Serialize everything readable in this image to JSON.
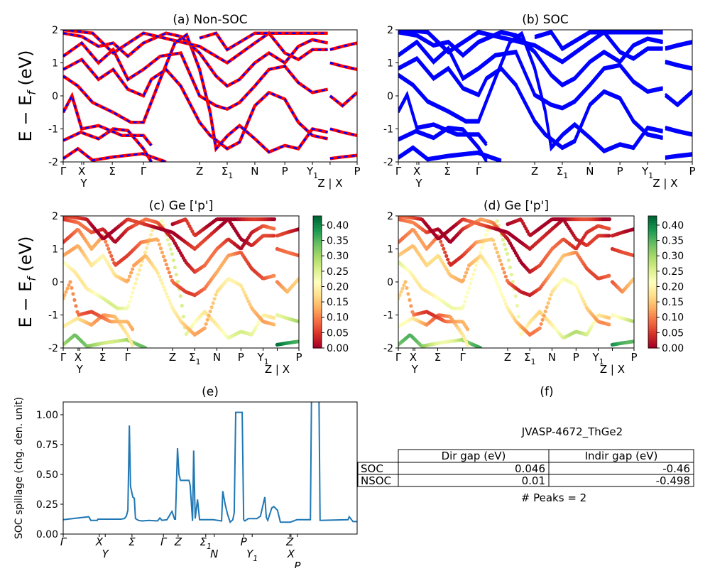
{
  "figure_ylabel": "E − E",
  "figure_ylabel_sub": "f",
  "figure_ylabel_unit": " (eV)",
  "chart_data": [
    {
      "id": "a",
      "type": "line",
      "title": "(a) Non-SOC",
      "ylim": [
        -2,
        2
      ],
      "yticks": [
        -2,
        -1,
        0,
        1,
        2
      ],
      "kpath_labels": [
        {
          "label": "Γ",
          "k": 0
        },
        {
          "label": "X",
          "k": 0.063
        },
        {
          "label": "Y",
          "k": 0.07
        },
        {
          "label": "Σ",
          "k": 0.167
        },
        {
          "label": "Γ",
          "k": 0.273
        },
        {
          "label": "Z",
          "k": 0.464
        },
        {
          "label": "Σ",
          "sub": "1",
          "k": 0.558
        },
        {
          "label": "N",
          "k": 0.652
        },
        {
          "label": "P",
          "k": 0.754
        },
        {
          "label": "Y",
          "sub": "1",
          "k": 0.848
        },
        {
          "label": "Z | X",
          "k": 0.908
        },
        {
          "label": "P",
          "k": 1
        }
      ],
      "colors": {
        "line": "#ff0000",
        "dash": "#0000ff"
      }
    },
    {
      "id": "b",
      "type": "line",
      "title": "(b) SOC",
      "ylim": [
        -2,
        2
      ],
      "yticks": [
        -2,
        -1,
        0,
        1,
        2
      ],
      "colors": {
        "line": "#0000ff"
      }
    },
    {
      "id": "c",
      "type": "scatter",
      "title": "(c)  Ge ['p']",
      "ylim": [
        -2,
        2
      ],
      "yticks": [
        -2,
        -1,
        0,
        1,
        2
      ],
      "colorbar": {
        "colormap": "RdYlGn",
        "range": [
          0,
          0.43
        ],
        "ticks": [
          "0.00",
          "0.05",
          "0.10",
          "0.15",
          "0.20",
          "0.25",
          "0.30",
          "0.35",
          "0.40"
        ]
      }
    },
    {
      "id": "d",
      "type": "scatter",
      "title": "(d) Ge ['p']",
      "ylim": [
        -2,
        2
      ],
      "yticks": [
        -2,
        -1,
        0,
        1,
        2
      ],
      "colorbar": {
        "colormap": "RdYlGn",
        "range": [
          0,
          0.43
        ],
        "ticks": [
          "0.00",
          "0.05",
          "0.10",
          "0.15",
          "0.20",
          "0.25",
          "0.30",
          "0.35",
          "0.40"
        ]
      }
    },
    {
      "id": "e",
      "type": "line",
      "title": "(e)",
      "ylabel": "SOC spillage (chg. den. unit)",
      "ylim": [
        0,
        1.107
      ],
      "yticks": [
        "0.00",
        "0.25",
        "0.50",
        "0.75",
        "1.00"
      ],
      "color": "#1f77b4",
      "kpath_labels": [
        {
          "label": "Γ",
          "k": 0
        },
        {
          "label": "X",
          "k": 0.123
        },
        {
          "label": "Y",
          "k": 0.143
        },
        {
          "label": "Σ",
          "k": 0.234
        },
        {
          "label": "Γ",
          "k": 0.341
        },
        {
          "label": "Z",
          "k": 0.391
        },
        {
          "label": "Σ",
          "sub": "1",
          "k": 0.485
        },
        {
          "label": "N",
          "k": 0.514
        },
        {
          "label": "P",
          "k": 0.614
        },
        {
          "label": "Y",
          "sub": "1",
          "k": 0.643
        },
        {
          "label": "Z",
          "k": 0.771
        },
        {
          "label": "X",
          "k": 0.775
        },
        {
          "label": "P",
          "k": 0.797
        }
      ],
      "points": [
        [
          0,
          0.12
        ],
        [
          0.087,
          0.145
        ],
        [
          0.094,
          0.115
        ],
        [
          0.116,
          0.115
        ],
        [
          0.118,
          0.125
        ],
        [
          0.196,
          0.125
        ],
        [
          0.208,
          0.13
        ],
        [
          0.215,
          0.15
        ],
        [
          0.22,
          0.2
        ],
        [
          0.225,
          0.91
        ],
        [
          0.229,
          0.4
        ],
        [
          0.237,
          0.31
        ],
        [
          0.242,
          0.3
        ],
        [
          0.246,
          0.13
        ],
        [
          0.256,
          0.115
        ],
        [
          0.268,
          0.11
        ],
        [
          0.292,
          0.115
        ],
        [
          0.321,
          0.11
        ],
        [
          0.329,
          0.135
        ],
        [
          0.336,
          0.115
        ],
        [
          0.353,
          0.12
        ],
        [
          0.37,
          0.19
        ],
        [
          0.379,
          0.125
        ],
        [
          0.382,
          0.125
        ],
        [
          0.389,
          0.72
        ],
        [
          0.394,
          0.5
        ],
        [
          0.399,
          0.45
        ],
        [
          0.428,
          0.45
        ],
        [
          0.432,
          0.41
        ],
        [
          0.44,
          0.11
        ],
        [
          0.444,
          0.7
        ],
        [
          0.449,
          0.13
        ],
        [
          0.457,
          0.29
        ],
        [
          0.464,
          0.12
        ],
        [
          0.51,
          0.12
        ],
        [
          0.539,
          0.11
        ],
        [
          0.543,
          0.36
        ],
        [
          0.551,
          0.25
        ],
        [
          0.56,
          0.16
        ],
        [
          0.568,
          0.1
        ],
        [
          0.577,
          0.12
        ],
        [
          0.582,
          0.18
        ],
        [
          0.587,
          1.02
        ],
        [
          0.609,
          1.02
        ],
        [
          0.614,
          0.12
        ],
        [
          0.618,
          0.11
        ],
        [
          0.63,
          0.13
        ],
        [
          0.659,
          0.13
        ],
        [
          0.671,
          0.15
        ],
        [
          0.686,
          0.31
        ],
        [
          0.691,
          0.14
        ],
        [
          0.696,
          0.115
        ],
        [
          0.71,
          0.22
        ],
        [
          0.717,
          0.23
        ],
        [
          0.729,
          0.2
        ],
        [
          0.739,
          0.1
        ],
        [
          0.773,
          0.1
        ],
        [
          0.795,
          0.12
        ],
        [
          0.841,
          0.12
        ],
        [
          0.845,
          1.2
        ],
        [
          0.87,
          1.2
        ],
        [
          0.874,
          0.115
        ],
        [
          0.969,
          0.12
        ],
        [
          0.973,
          0.145
        ],
        [
          0.986,
          0.105
        ],
        [
          1,
          0.105
        ]
      ]
    },
    {
      "id": "f",
      "type": "table",
      "title": "(f)",
      "caption": "JVASP-4672_ThGe2",
      "columns": [
        "Dir gap (eV)",
        "Indir gap (eV)"
      ],
      "rows": [
        {
          "label": "SOC",
          "values": [
            "0.046",
            "-0.46"
          ]
        },
        {
          "label": "NSOC",
          "values": [
            "0.01",
            "-0.498"
          ]
        }
      ],
      "footer": "# Peaks = 2"
    }
  ],
  "bands": [
    {
      "w": 0.3,
      "pts": [
        [
          0,
          -1.9
        ],
        [
          0.05,
          -1.6
        ],
        [
          0.1,
          -1.95
        ],
        [
          0.17,
          -1.85
        ],
        [
          0.27,
          -1.75
        ],
        [
          0.35,
          -2.0
        ]
      ]
    },
    {
      "w": 0.15,
      "pts": [
        [
          0,
          -1.35
        ],
        [
          0.06,
          -1.1
        ],
        [
          0.12,
          -1.3
        ],
        [
          0.17,
          -1.0
        ],
        [
          0.22,
          -1.05
        ],
        [
          0.273,
          -1.6
        ],
        [
          0.3,
          -2.0
        ]
      ]
    },
    {
      "w": 0.1,
      "pts": [
        [
          0,
          -0.5
        ],
        [
          0.03,
          0.0
        ],
        [
          0.063,
          -1.0
        ],
        [
          0.12,
          -0.9
        ],
        [
          0.2,
          -1.2
        ],
        [
          0.273,
          -1.2
        ],
        [
          0.3,
          -1.5
        ]
      ]
    },
    {
      "w": 0.22,
      "pts": [
        [
          0,
          0.6
        ],
        [
          0.05,
          0.3
        ],
        [
          0.1,
          -0.2
        ],
        [
          0.17,
          -0.5
        ],
        [
          0.23,
          -0.8
        ],
        [
          0.273,
          -0.8
        ],
        [
          0.33,
          0.5
        ],
        [
          0.38,
          1.6
        ],
        [
          0.42,
          1.85
        ],
        [
          0.464,
          0.8
        ],
        [
          0.5,
          -0.5
        ],
        [
          0.52,
          -1.6
        ],
        [
          0.56,
          -1.2
        ],
        [
          0.6,
          -0.9
        ],
        [
          0.652,
          -1.3
        ],
        [
          0.7,
          -1.7
        ],
        [
          0.754,
          -1.5
        ],
        [
          0.8,
          -1.6
        ],
        [
          0.848,
          -1.0
        ],
        [
          0.9,
          -1.1
        ]
      ]
    },
    {
      "w": 0.16,
      "pts": [
        [
          0,
          0.8
        ],
        [
          0.063,
          1.1
        ],
        [
          0.12,
          0.5
        ],
        [
          0.17,
          0.8
        ],
        [
          0.22,
          0.2
        ],
        [
          0.273,
          0.0
        ],
        [
          0.3,
          0.5
        ],
        [
          0.35,
          0.8
        ],
        [
          0.4,
          0.3
        ],
        [
          0.464,
          -0.8
        ],
        [
          0.5,
          -1.2
        ],
        [
          0.558,
          -1.6
        ],
        [
          0.6,
          -1.4
        ],
        [
          0.652,
          -0.3
        ],
        [
          0.7,
          0.1
        ],
        [
          0.754,
          -0.1
        ],
        [
          0.8,
          -0.8
        ],
        [
          0.848,
          -1.2
        ],
        [
          0.9,
          -1.3
        ]
      ]
    },
    {
      "w": 0.09,
      "pts": [
        [
          0,
          1.2
        ],
        [
          0.063,
          1.6
        ],
        [
          0.12,
          1.0
        ],
        [
          0.17,
          1.4
        ],
        [
          0.22,
          0.5
        ],
        [
          0.273,
          0.8
        ],
        [
          0.33,
          1.2
        ],
        [
          0.4,
          1.3
        ],
        [
          0.464,
          0.0
        ],
        [
          0.52,
          -0.3
        ],
        [
          0.558,
          -0.4
        ],
        [
          0.6,
          -0.2
        ],
        [
          0.652,
          0.3
        ],
        [
          0.7,
          0.8
        ],
        [
          0.754,
          0.9
        ],
        [
          0.8,
          0.4
        ],
        [
          0.848,
          0.1
        ],
        [
          0.9,
          0.2
        ]
      ]
    },
    {
      "w": 0.05,
      "pts": [
        [
          0,
          1.9
        ],
        [
          0.063,
          1.8
        ],
        [
          0.12,
          1.5
        ],
        [
          0.17,
          1.6
        ],
        [
          0.22,
          1.2
        ],
        [
          0.273,
          1.6
        ],
        [
          0.35,
          1.9
        ],
        [
          0.4,
          1.8
        ],
        [
          0.464,
          1.3
        ],
        [
          0.52,
          0.6
        ],
        [
          0.558,
          0.3
        ],
        [
          0.6,
          0.5
        ],
        [
          0.652,
          1.0
        ],
        [
          0.7,
          1.3
        ],
        [
          0.754,
          1.0
        ],
        [
          0.8,
          1.5
        ],
        [
          0.848,
          1.7
        ],
        [
          0.9,
          1.6
        ]
      ]
    },
    {
      "w": 0.02,
      "pts": [
        [
          0,
          2.0
        ],
        [
          0.1,
          1.9
        ],
        [
          0.17,
          1.3
        ],
        [
          0.273,
          1.9
        ],
        [
          0.464,
          1.5
        ],
        [
          0.52,
          1.2
        ],
        [
          0.558,
          1.0
        ],
        [
          0.652,
          1.6
        ],
        [
          0.7,
          1.9
        ],
        [
          0.754,
          1.3
        ],
        [
          0.8,
          1.1
        ],
        [
          0.848,
          1.4
        ],
        [
          0.9,
          1.4
        ]
      ]
    },
    {
      "w": 0.01,
      "pts": [
        [
          0.464,
          1.75
        ],
        [
          0.52,
          1.9
        ],
        [
          0.558,
          1.4
        ],
        [
          0.652,
          1.9
        ],
        [
          0.754,
          1.9
        ],
        [
          0.848,
          1.9
        ],
        [
          0.9,
          1.9
        ]
      ]
    },
    {
      "w": 0.28,
      "pts": [
        [
          0.908,
          -1.0
        ],
        [
          0.95,
          -1.1
        ],
        [
          1,
          -1.2
        ]
      ]
    },
    {
      "w": 0.12,
      "pts": [
        [
          0.908,
          0.0
        ],
        [
          0.95,
          -0.3
        ],
        [
          1,
          0.1
        ]
      ]
    },
    {
      "w": 0.05,
      "pts": [
        [
          0.908,
          1.0
        ],
        [
          0.95,
          0.9
        ],
        [
          1,
          0.8
        ]
      ]
    },
    {
      "w": 0.02,
      "pts": [
        [
          0.908,
          1.4
        ],
        [
          0.95,
          1.5
        ],
        [
          1,
          1.6
        ]
      ]
    },
    {
      "w": 0.4,
      "pts": [
        [
          0.908,
          -1.9
        ],
        [
          0.95,
          -1.85
        ],
        [
          1,
          -1.8
        ]
      ]
    }
  ]
}
